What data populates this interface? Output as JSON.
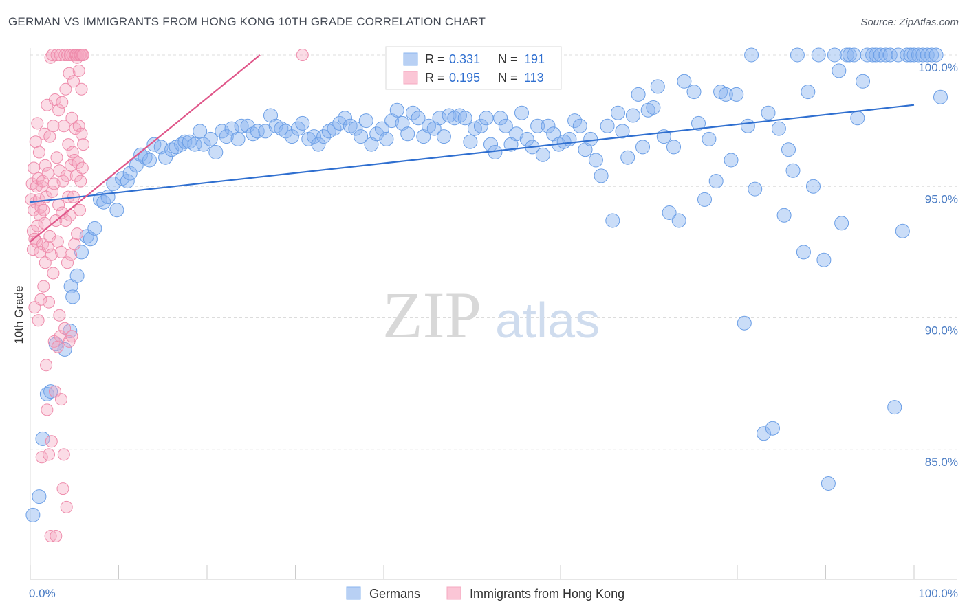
{
  "title": "GERMAN VS IMMIGRANTS FROM HONG KONG 10TH GRADE CORRELATION CHART",
  "source": "Source: ZipAtlas.com",
  "watermark": {
    "zip": "ZIP",
    "atlas": "atlas"
  },
  "chart_data": {
    "type": "scatter",
    "title": "GERMAN VS IMMIGRANTS FROM HONG KONG 10TH GRADE CORRELATION CHART",
    "xlabel": "",
    "ylabel": "10th Grade",
    "xlim": [
      0,
      100
    ],
    "ylim": [
      80.6,
      100.9
    ],
    "x_tick_labels": [
      "0.0%",
      "100.0%"
    ],
    "y_ticks": [
      {
        "value": 100,
        "label": "100.0%"
      },
      {
        "value": 95,
        "label": "95.0%"
      },
      {
        "value": 90,
        "label": "90.0%"
      },
      {
        "value": 85,
        "label": "85.0%"
      }
    ],
    "grid": "horizontal dashed",
    "legend_position": "top-center (stats) and bottom-center (series)",
    "stats": [
      {
        "r_label": "R =",
        "r_value": "0.331",
        "n_label": "N =",
        "n_value": "191"
      },
      {
        "r_label": "R =",
        "r_value": "0.195",
        "n_label": "N =",
        "n_value": "113"
      }
    ],
    "series": [
      {
        "name": "Germans",
        "color": "#8ab4ef",
        "edge": "#6a9ee6",
        "line_color": "#2f6fd0",
        "trend": [
          [
            0,
            94.4
          ],
          [
            100,
            98.1
          ]
        ],
        "points": [
          [
            0.3,
            82.5
          ],
          [
            1,
            83.2
          ],
          [
            1.4,
            85.4
          ],
          [
            1.9,
            87.1
          ],
          [
            2.3,
            87.2
          ],
          [
            2.9,
            89
          ],
          [
            3.9,
            88.8
          ],
          [
            4.5,
            89.5
          ],
          [
            4.6,
            91.2
          ],
          [
            4.8,
            90.8
          ],
          [
            5.3,
            91.6
          ],
          [
            5.8,
            92.5
          ],
          [
            6.4,
            93.1
          ],
          [
            6.8,
            93
          ],
          [
            7.3,
            93.4
          ],
          [
            7.9,
            94.5
          ],
          [
            8.3,
            94.4
          ],
          [
            8.8,
            94.6
          ],
          [
            9.4,
            95.1
          ],
          [
            9.8,
            94.1
          ],
          [
            10.4,
            95.3
          ],
          [
            11,
            95.2
          ],
          [
            11.3,
            95.5
          ],
          [
            12,
            95.8
          ],
          [
            12.5,
            96.2
          ],
          [
            13,
            96.1
          ],
          [
            13.5,
            96
          ],
          [
            14,
            96.6
          ],
          [
            14.8,
            96.5
          ],
          [
            15.3,
            96.1
          ],
          [
            16,
            96.4
          ],
          [
            16.5,
            96.5
          ],
          [
            17.1,
            96.6
          ],
          [
            17.5,
            96.7
          ],
          [
            18,
            96.7
          ],
          [
            18.6,
            96.6
          ],
          [
            19.2,
            97.1
          ],
          [
            19.6,
            96.6
          ],
          [
            20.4,
            96.8
          ],
          [
            21,
            96.3
          ],
          [
            21.7,
            97.1
          ],
          [
            22.2,
            96.9
          ],
          [
            22.8,
            97.2
          ],
          [
            23.5,
            96.8
          ],
          [
            23.9,
            97.3
          ],
          [
            24.6,
            97.3
          ],
          [
            25.2,
            97
          ],
          [
            25.7,
            97.1
          ],
          [
            26.6,
            97.1
          ],
          [
            27.2,
            97.7
          ],
          [
            27.8,
            97.3
          ],
          [
            28.4,
            97.2
          ],
          [
            28.9,
            97.1
          ],
          [
            29.6,
            96.9
          ],
          [
            30.3,
            97.2
          ],
          [
            30.8,
            97.4
          ],
          [
            31.5,
            96.8
          ],
          [
            32.1,
            96.9
          ],
          [
            32.6,
            96.6
          ],
          [
            33.2,
            96.9
          ],
          [
            33.8,
            97.1
          ],
          [
            34.4,
            97.2
          ],
          [
            35,
            97.4
          ],
          [
            35.6,
            97.6
          ],
          [
            36.2,
            97.3
          ],
          [
            36.8,
            97.2
          ],
          [
            37.4,
            96.9
          ],
          [
            38,
            97.5
          ],
          [
            38.6,
            96.6
          ],
          [
            39.2,
            97
          ],
          [
            39.8,
            97.2
          ],
          [
            40.3,
            96.8
          ],
          [
            40.9,
            97.5
          ],
          [
            41.5,
            97.9
          ],
          [
            42.1,
            97.4
          ],
          [
            42.7,
            97
          ],
          [
            43.3,
            97.8
          ],
          [
            43.9,
            97.6
          ],
          [
            44.5,
            96.9
          ],
          [
            45.1,
            97.3
          ],
          [
            45.7,
            97.2
          ],
          [
            46.3,
            97.6
          ],
          [
            46.8,
            96.9
          ],
          [
            47.4,
            97.7
          ],
          [
            48,
            97.6
          ],
          [
            48.6,
            97.7
          ],
          [
            49.2,
            97.6
          ],
          [
            49.8,
            96.7
          ],
          [
            50.3,
            97.2
          ],
          [
            51,
            97.3
          ],
          [
            51.6,
            97.6
          ],
          [
            52.1,
            96.6
          ],
          [
            52.6,
            96.3
          ],
          [
            53.2,
            97.6
          ],
          [
            53.8,
            97.3
          ],
          [
            54.4,
            96.6
          ],
          [
            55,
            97
          ],
          [
            55.6,
            97.8
          ],
          [
            56.2,
            96.8
          ],
          [
            56.8,
            96.5
          ],
          [
            57.4,
            97.3
          ],
          [
            58,
            96.2
          ],
          [
            58.6,
            97.3
          ],
          [
            59.2,
            97
          ],
          [
            59.8,
            96.6
          ],
          [
            60.4,
            96.7
          ],
          [
            61,
            96.8
          ],
          [
            61.6,
            97.5
          ],
          [
            62.2,
            97.3
          ],
          [
            62.8,
            96.4
          ],
          [
            63.4,
            96.8
          ],
          [
            64,
            96
          ],
          [
            64.6,
            95.4
          ],
          [
            65.3,
            97.3
          ],
          [
            65.9,
            93.7
          ],
          [
            66.5,
            97.8
          ],
          [
            67,
            97.1
          ],
          [
            67.6,
            96.1
          ],
          [
            68.2,
            97.7
          ],
          [
            68.8,
            98.5
          ],
          [
            69.3,
            96.5
          ],
          [
            69.9,
            97.9
          ],
          [
            70.5,
            98
          ],
          [
            71,
            98.8
          ],
          [
            71.7,
            96.9
          ],
          [
            72.3,
            94
          ],
          [
            72.8,
            96.5
          ],
          [
            73.4,
            93.7
          ],
          [
            74,
            99
          ],
          [
            75.1,
            98.6
          ],
          [
            75.6,
            97.4
          ],
          [
            76.3,
            94.5
          ],
          [
            76.8,
            96.8
          ],
          [
            77.6,
            95.2
          ],
          [
            78.1,
            98.6
          ],
          [
            78.7,
            98.5
          ],
          [
            79.3,
            96
          ],
          [
            79.9,
            98.5
          ],
          [
            80.8,
            89.8
          ],
          [
            81.2,
            97.3
          ],
          [
            81.6,
            100
          ],
          [
            82,
            94.9
          ],
          [
            83,
            85.6
          ],
          [
            83.5,
            97.8
          ],
          [
            84,
            85.8
          ],
          [
            84.7,
            97.2
          ],
          [
            85.3,
            93.9
          ],
          [
            85.8,
            96.4
          ],
          [
            86.3,
            95.6
          ],
          [
            86.8,
            100
          ],
          [
            87.5,
            92.5
          ],
          [
            88,
            98.6
          ],
          [
            88.6,
            95
          ],
          [
            89.2,
            100
          ],
          [
            89.8,
            92.2
          ],
          [
            90.3,
            83.7
          ],
          [
            91,
            100
          ],
          [
            91.5,
            99.4
          ],
          [
            91.8,
            93.6
          ],
          [
            92.4,
            100
          ],
          [
            92.7,
            100
          ],
          [
            93.2,
            100
          ],
          [
            93.6,
            97.6
          ],
          [
            94.2,
            99
          ],
          [
            94.7,
            100
          ],
          [
            95.3,
            100
          ],
          [
            95.7,
            100
          ],
          [
            96.2,
            100
          ],
          [
            96.8,
            100
          ],
          [
            97.3,
            100
          ],
          [
            97.8,
            86.6
          ],
          [
            98.2,
            100
          ],
          [
            98.7,
            93.3
          ],
          [
            99.2,
            100
          ],
          [
            99.6,
            100
          ],
          [
            100,
            100
          ],
          [
            100.5,
            100
          ],
          [
            101,
            100
          ],
          [
            101.5,
            100
          ],
          [
            102,
            100
          ],
          [
            102.5,
            100
          ],
          [
            103,
            98.4
          ]
        ]
      },
      {
        "name": "Immigrants from Hong Kong",
        "color": "#f5a8c0",
        "edge": "#ee8bab",
        "line_color": "#e0578a",
        "trend": [
          [
            0,
            92.9
          ],
          [
            26,
            100
          ]
        ],
        "points": [
          [
            0.1,
            94.5
          ],
          [
            0.2,
            95.1
          ],
          [
            0.3,
            93.3
          ],
          [
            0.3,
            92.6
          ],
          [
            0.4,
            94.1
          ],
          [
            0.4,
            95.7
          ],
          [
            0.5,
            93
          ],
          [
            0.5,
            90.4
          ],
          [
            0.6,
            96.7
          ],
          [
            0.6,
            94.4
          ],
          [
            0.7,
            92.9
          ],
          [
            0.7,
            95
          ],
          [
            0.8,
            97.4
          ],
          [
            0.8,
            93.5
          ],
          [
            0.9,
            89.9
          ],
          [
            0.9,
            95.3
          ],
          [
            1,
            96.3
          ],
          [
            1,
            94.5
          ],
          [
            1.1,
            92.5
          ],
          [
            1.1,
            93.9
          ],
          [
            1.2,
            90.7
          ],
          [
            1.2,
            94.2
          ],
          [
            1.3,
            95
          ],
          [
            1.3,
            84.7
          ],
          [
            1.4,
            92.8
          ],
          [
            1.4,
            95.2
          ],
          [
            1.5,
            91.2
          ],
          [
            1.5,
            94.1
          ],
          [
            1.6,
            93.6
          ],
          [
            1.6,
            97
          ],
          [
            1.7,
            92.1
          ],
          [
            1.7,
            95.8
          ],
          [
            1.8,
            88.2
          ],
          [
            1.8,
            94.6
          ],
          [
            1.9,
            98.1
          ],
          [
            1.9,
            86.5
          ],
          [
            2,
            92.7
          ],
          [
            2,
            95.5
          ],
          [
            2.1,
            84.8
          ],
          [
            2.1,
            90.6
          ],
          [
            2.2,
            96.9
          ],
          [
            2.2,
            93.1
          ],
          [
            2.3,
            81.7
          ],
          [
            2.3,
            99.9
          ],
          [
            2.4,
            85.3
          ],
          [
            2.4,
            92.4
          ],
          [
            2.5,
            100
          ],
          [
            2.5,
            94.8
          ],
          [
            2.6,
            97.3
          ],
          [
            2.6,
            91.7
          ],
          [
            2.7,
            89.1
          ],
          [
            2.7,
            95.1
          ],
          [
            2.8,
            87.2
          ],
          [
            2.8,
            98.3
          ],
          [
            2.9,
            81.7
          ],
          [
            2.9,
            93.7
          ],
          [
            3,
            100
          ],
          [
            3,
            96.1
          ],
          [
            3.1,
            88.9
          ],
          [
            3.1,
            92.9
          ],
          [
            3.2,
            97.9
          ],
          [
            3.2,
            94.3
          ],
          [
            3.3,
            90.1
          ],
          [
            3.3,
            95.6
          ],
          [
            3.4,
            89.3
          ],
          [
            3.4,
            100
          ],
          [
            3.5,
            86.9
          ],
          [
            3.5,
            92.5
          ],
          [
            3.6,
            98.2
          ],
          [
            3.6,
            94
          ],
          [
            3.7,
            83.5
          ],
          [
            3.7,
            95.2
          ],
          [
            3.8,
            84.8
          ],
          [
            3.8,
            97.3
          ],
          [
            3.9,
            89.6
          ],
          [
            3.9,
            100
          ],
          [
            4,
            93.7
          ],
          [
            4,
            98.7
          ],
          [
            4.1,
            82.8
          ],
          [
            4.1,
            95.4
          ],
          [
            4.2,
            92.1
          ],
          [
            4.2,
            100
          ],
          [
            4.3,
            94.6
          ],
          [
            4.3,
            96.6
          ],
          [
            4.4,
            89.1
          ],
          [
            4.4,
            99.3
          ],
          [
            4.5,
            93.9
          ],
          [
            4.5,
            100
          ],
          [
            4.6,
            92.4
          ],
          [
            4.6,
            95.8
          ],
          [
            4.7,
            97.6
          ],
          [
            4.7,
            89.3
          ],
          [
            4.8,
            96.3
          ],
          [
            4.8,
            100
          ],
          [
            4.9,
            94.6
          ],
          [
            4.9,
            99
          ],
          [
            5,
            96
          ],
          [
            5,
            92.8
          ],
          [
            5.1,
            100
          ],
          [
            5.1,
            97.2
          ],
          [
            5.2,
            95.4
          ],
          [
            5.2,
            100
          ],
          [
            5.3,
            93.2
          ],
          [
            5.3,
            99.9
          ],
          [
            5.4,
            95.9
          ],
          [
            5.4,
            100
          ],
          [
            5.5,
            97.3
          ],
          [
            5.5,
            99.4
          ],
          [
            5.6,
            94.1
          ],
          [
            5.6,
            100
          ],
          [
            5.7,
            100
          ],
          [
            5.7,
            95.2
          ],
          [
            5.8,
            97
          ],
          [
            5.8,
            98.7
          ],
          [
            5.9,
            100
          ],
          [
            5.9,
            95.7
          ],
          [
            6,
            96.6
          ],
          [
            6,
            100
          ],
          [
            30.8,
            100
          ]
        ]
      }
    ]
  },
  "legend": {
    "items": [
      "Germans",
      "Immigrants from Hong Kong"
    ]
  }
}
